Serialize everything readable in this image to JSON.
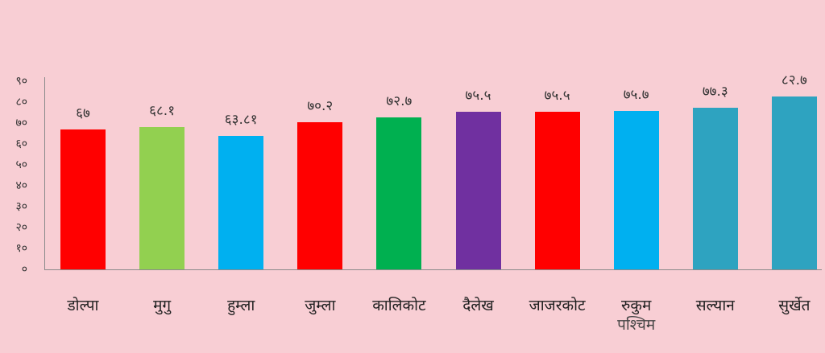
{
  "chart_data": {
    "type": "bar",
    "title": "",
    "xlabel": "",
    "ylabel": "",
    "ylim": [
      0,
      90
    ],
    "grid": false,
    "legend": "none",
    "y_ticks": [
      "०",
      "१०",
      "२०",
      "३०",
      "४०",
      "५०",
      "६०",
      "७०",
      "८०",
      "९०"
    ],
    "y_tick_values": [
      0,
      10,
      20,
      30,
      40,
      50,
      60,
      70,
      80,
      90
    ],
    "categories": [
      "डोल्पा",
      "मुगु",
      "हुम्ला",
      "जुम्ला",
      "कालिकोट",
      "दैलेख",
      "जाजरकोट",
      "रुकुम पश्चिम",
      "सल्यान",
      "सुर्खेत"
    ],
    "category_lines": [
      [
        "डोल्पा"
      ],
      [
        "मुगु"
      ],
      [
        "हुम्ला"
      ],
      [
        "जुम्ला"
      ],
      [
        "कालिकोट"
      ],
      [
        "दैलेख"
      ],
      [
        "जाजरकोट"
      ],
      [
        "रुकुम",
        "पश्चिम"
      ],
      [
        "सल्यान"
      ],
      [
        "सुर्खेत"
      ]
    ],
    "values": [
      67,
      68.1,
      63.81,
      70.2,
      72.7,
      75.5,
      75.5,
      75.7,
      77.3,
      82.7
    ],
    "value_labels": [
      "६७",
      "६८.१",
      "६३.८१",
      "७०.२",
      "७२.७",
      "७५.५",
      "७५.५",
      "७५.७",
      "७७.३",
      "८२.७"
    ],
    "colors": [
      "#FF0000",
      "#92D050",
      "#00B0F0",
      "#FF0000",
      "#00B050",
      "#7030A0",
      "#FF0000",
      "#00B0F0",
      "#2EA3C0",
      "#2EA3C0"
    ]
  },
  "style": {
    "background": "#F8CED4",
    "axis_color": "#8a8a8a"
  }
}
